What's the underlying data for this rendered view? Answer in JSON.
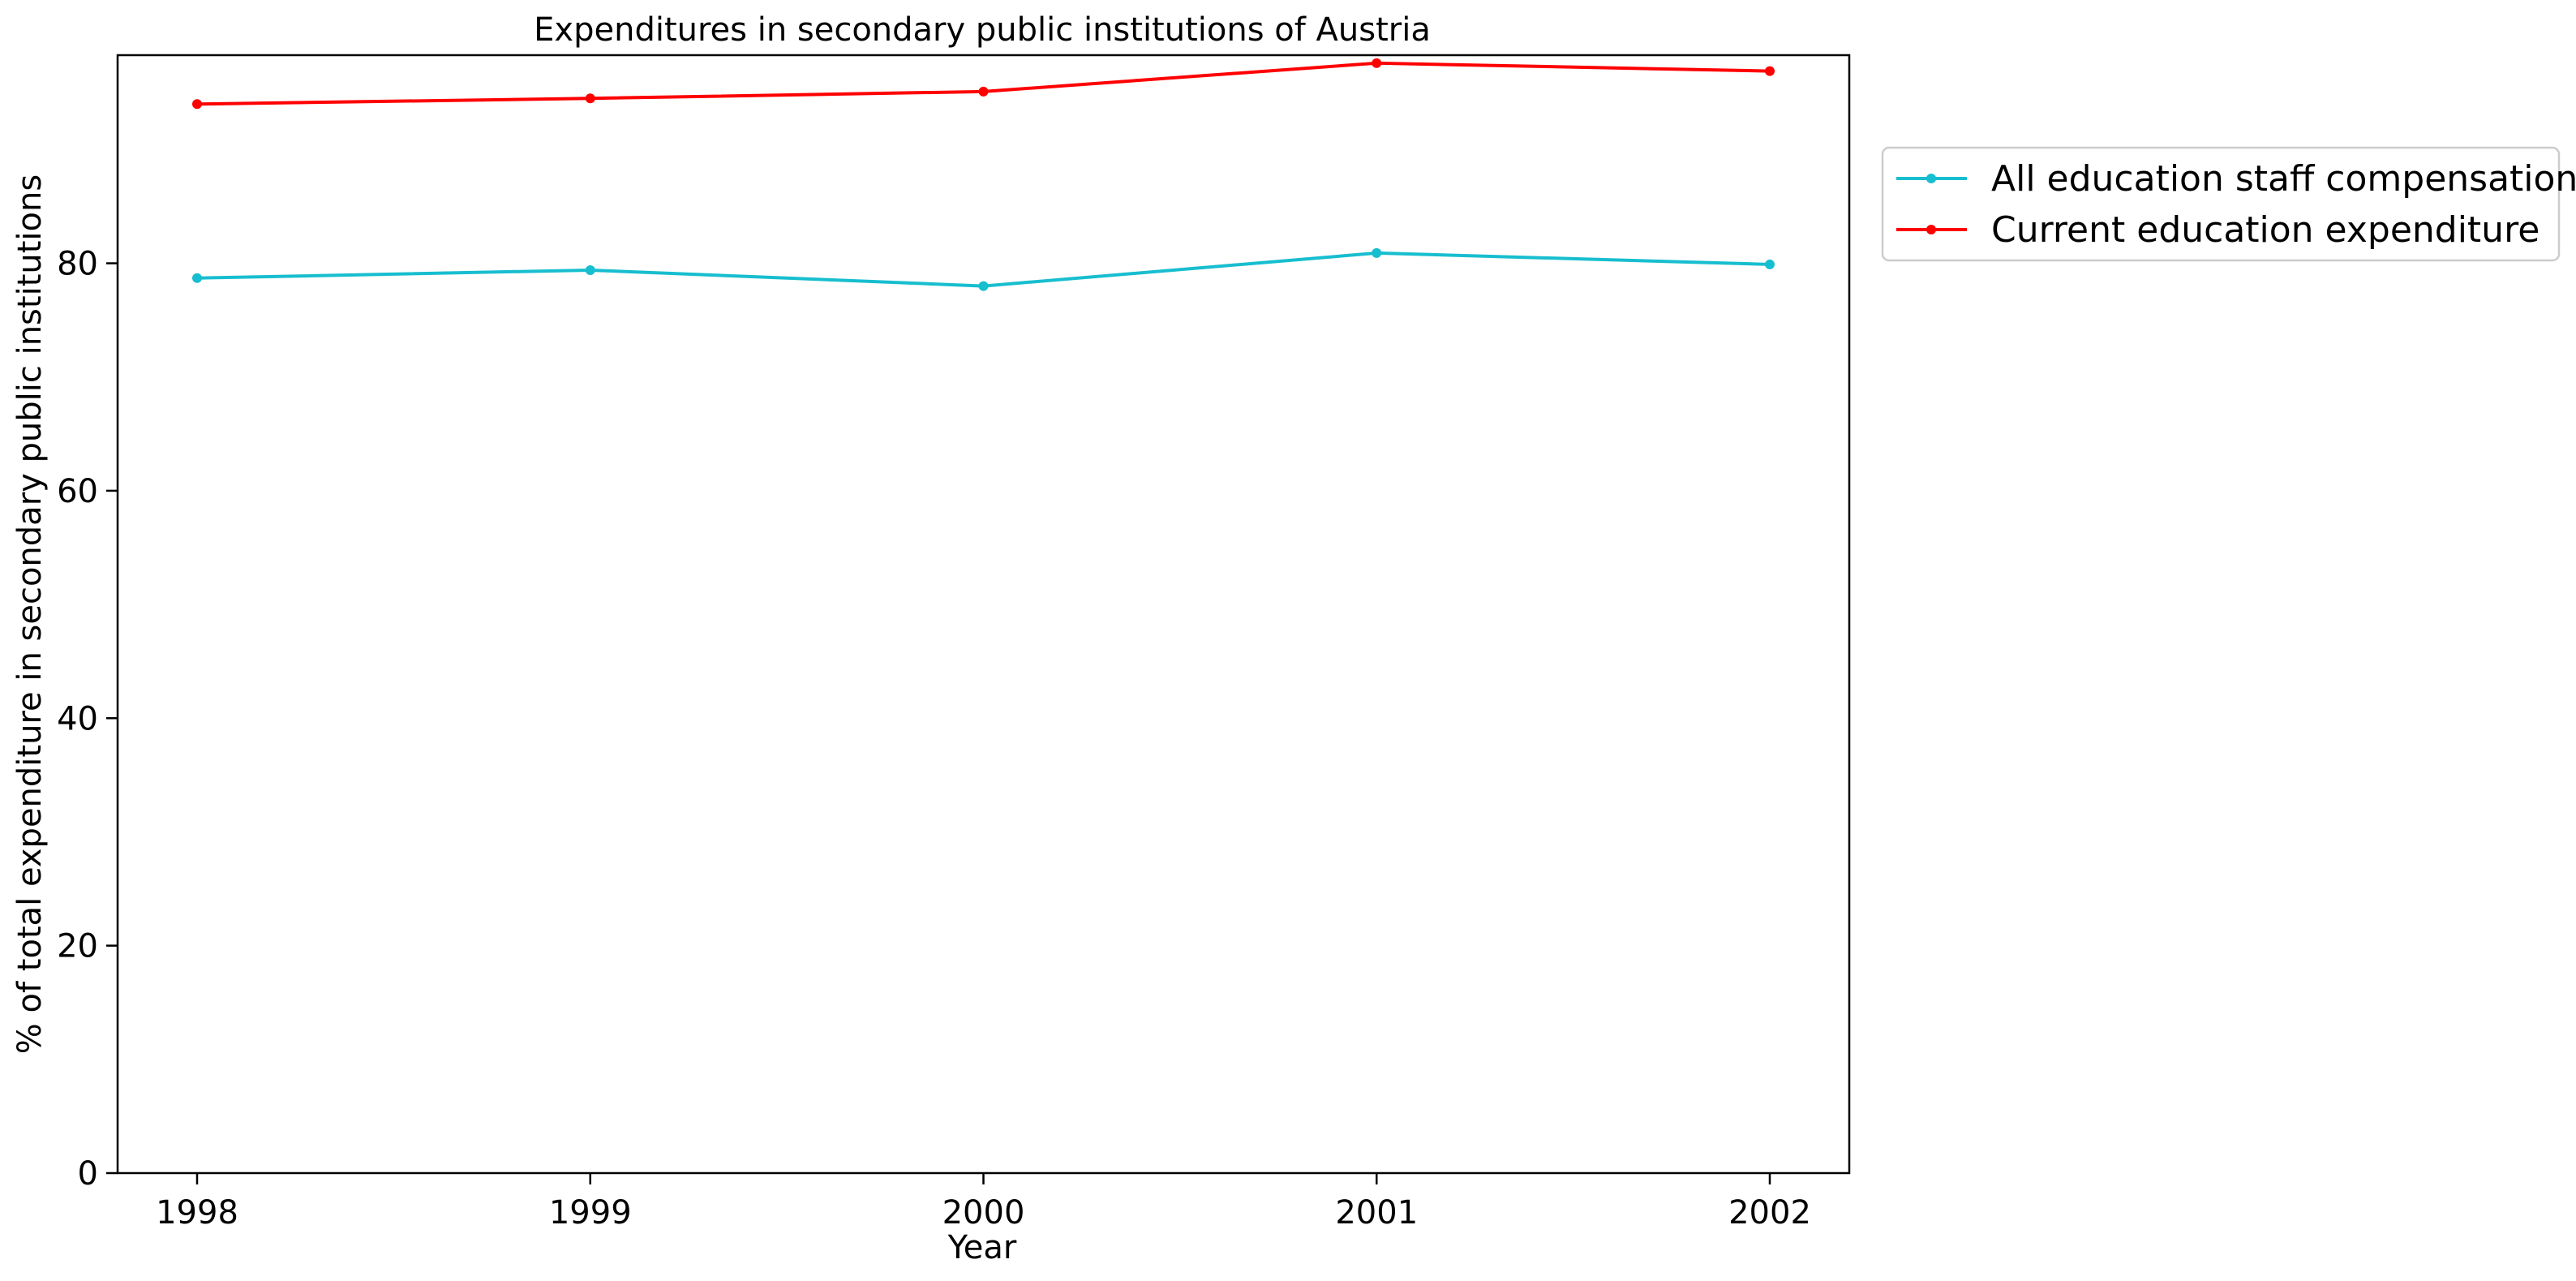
{
  "chart_data": {
    "type": "line",
    "title": "Expenditures in secondary public institutions of Austria",
    "xlabel": "Year",
    "ylabel": "% of total expenditure in secondary public institutions",
    "x": [
      "1998",
      "1999",
      "2000",
      "2001",
      "2002"
    ],
    "ylim": [
      0,
      98.3
    ],
    "yticks": [
      "0",
      "20",
      "40",
      "60",
      "80"
    ],
    "grid": false,
    "legend_position": "outside-right-top",
    "series": [
      {
        "name": "All education staff compensation",
        "color": "#17becf",
        "values": [
          78.7,
          79.4,
          78.0,
          80.9,
          79.9
        ]
      },
      {
        "name": "Current education expenditure",
        "color": "#ff0000",
        "values": [
          94.0,
          94.5,
          95.1,
          97.6,
          96.9
        ]
      }
    ]
  }
}
